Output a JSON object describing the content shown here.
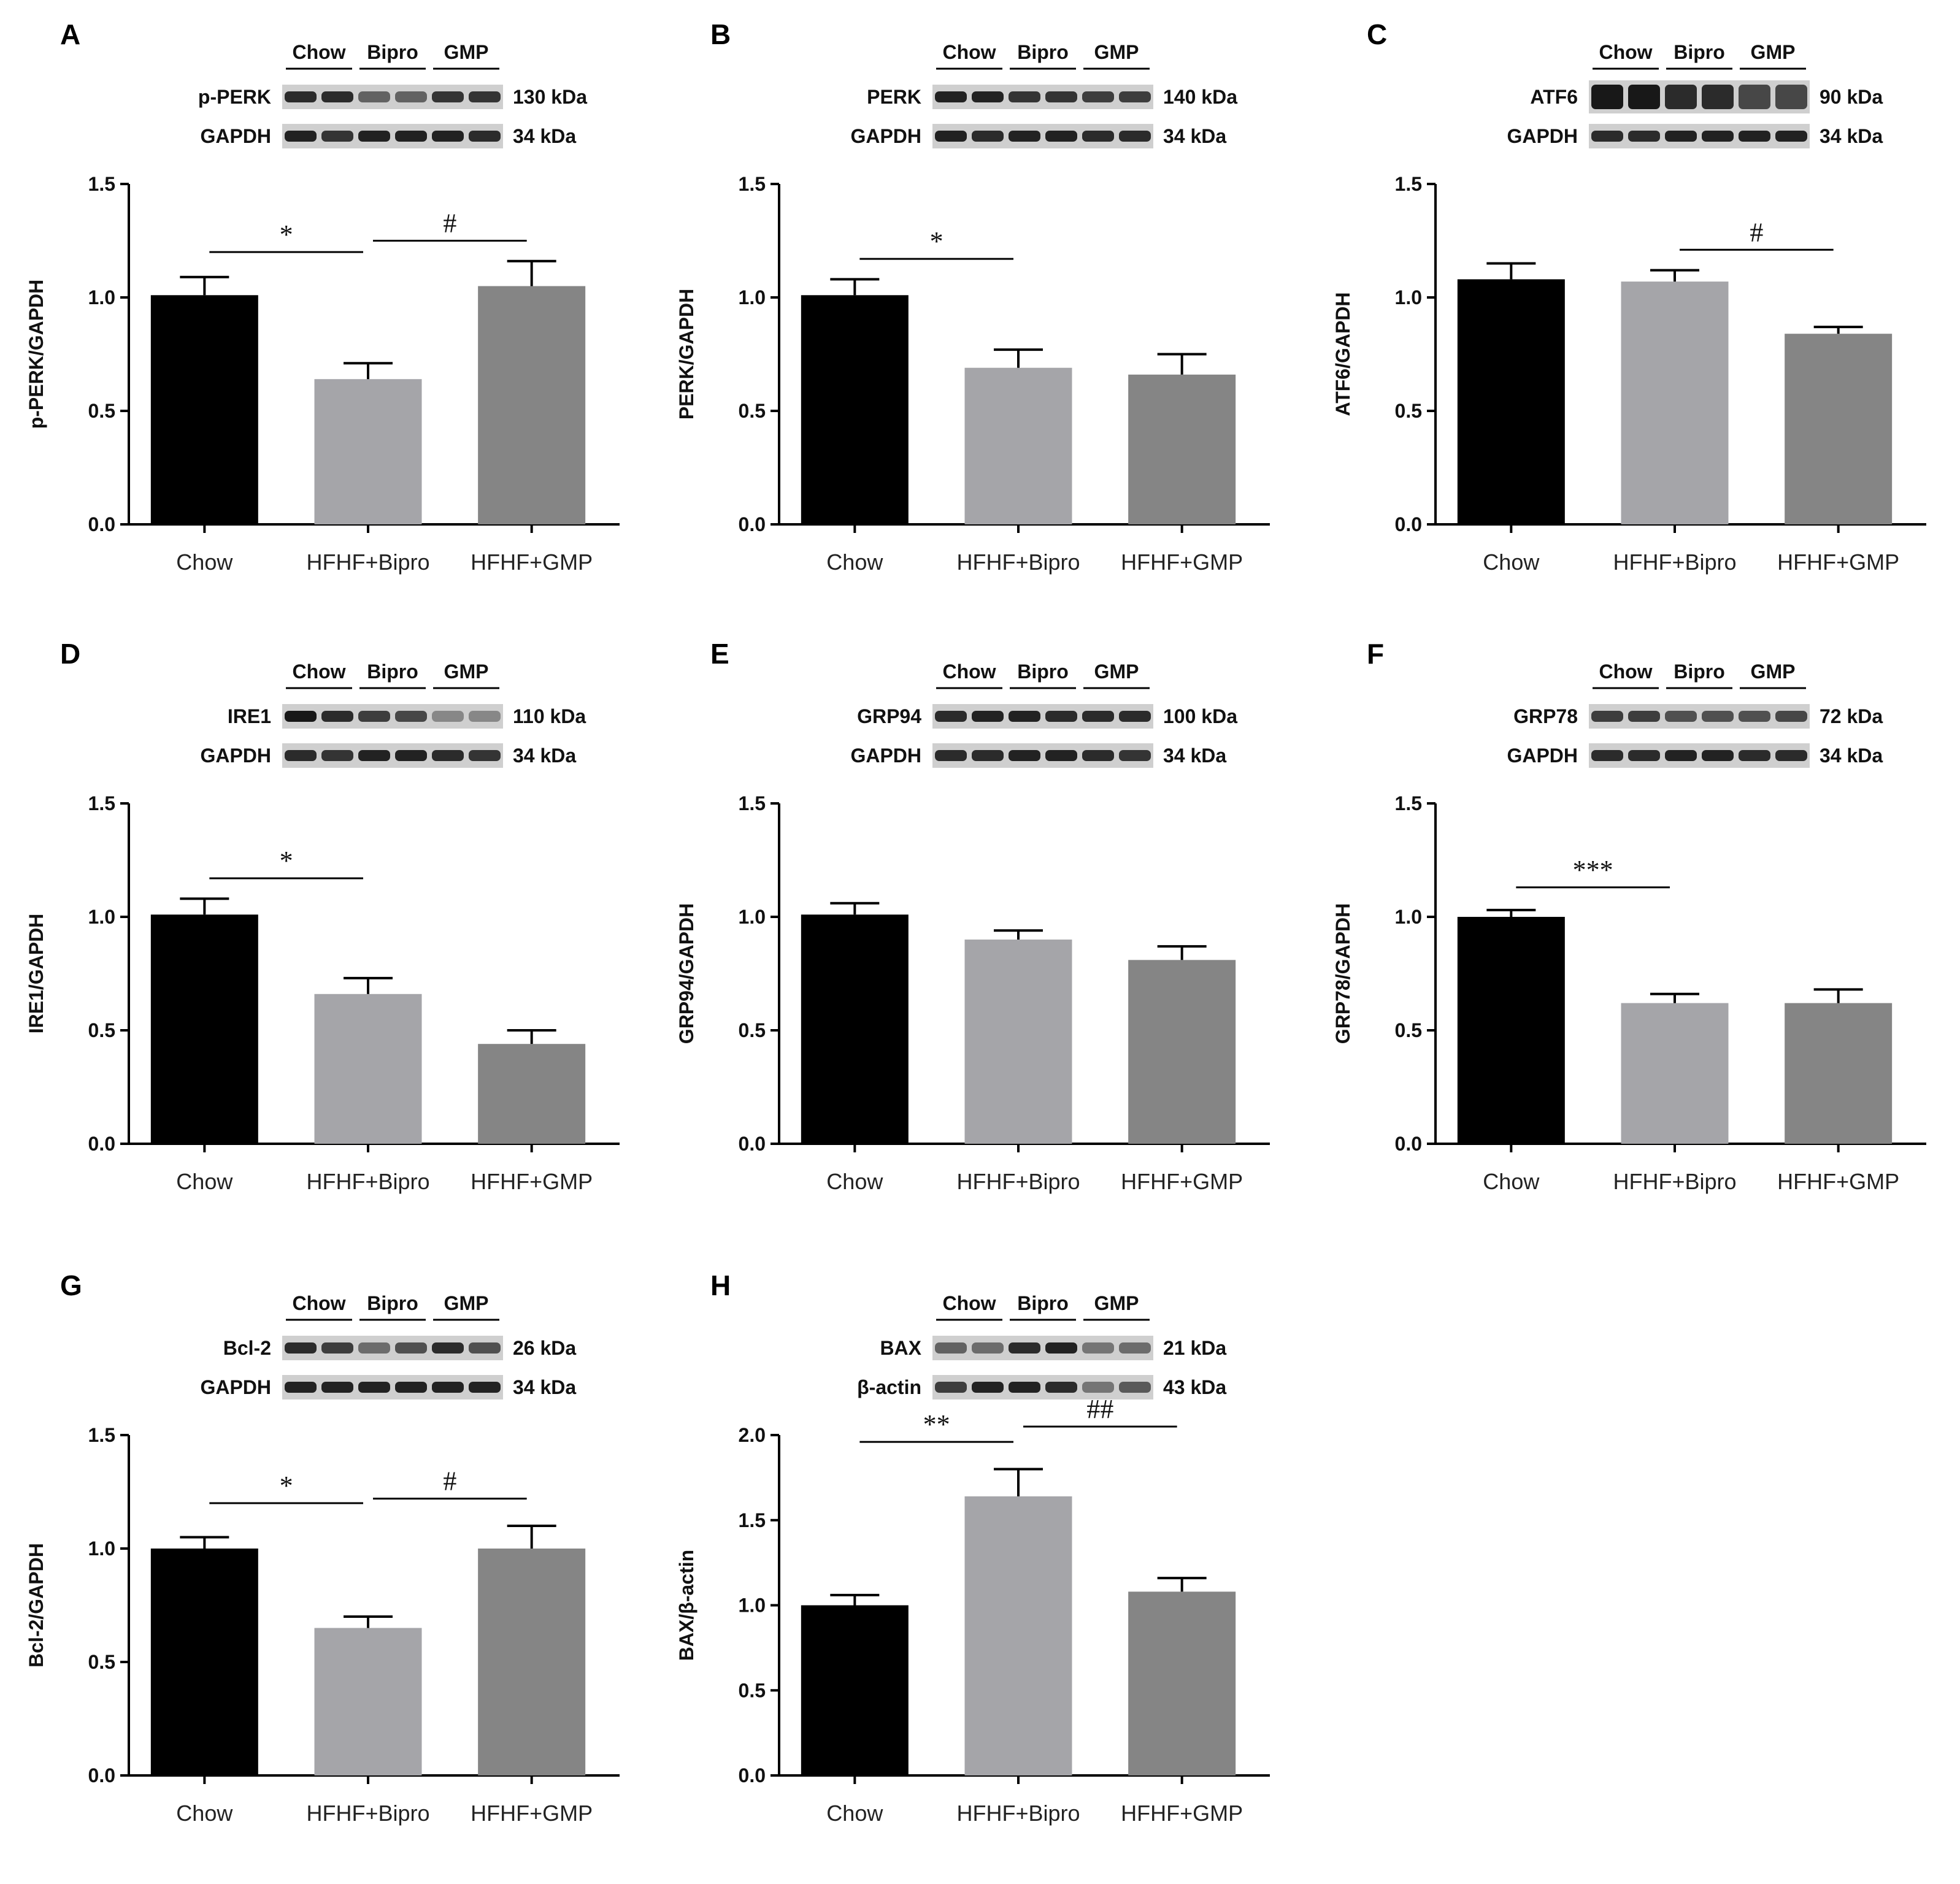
{
  "figure": {
    "bar_colors": [
      "#000000",
      "#a5a5a9",
      "#858585"
    ],
    "band_color": "#1e1e1e",
    "blot_background": "#cfcfcf"
  },
  "chart_data": [
    {
      "panel": "A",
      "type": "bar",
      "blot": {
        "groups": [
          "Chow",
          "Bipro",
          "GMP"
        ],
        "rows": [
          {
            "protein": "p-PERK",
            "size": "130 kDa",
            "intensity": [
              0.85,
              0.85,
              0.55,
              0.55,
              0.8,
              0.8
            ]
          },
          {
            "protein": "GAPDH",
            "size": "34 kDa",
            "intensity": [
              0.9,
              0.8,
              0.9,
              0.9,
              0.9,
              0.85
            ]
          }
        ]
      },
      "categories": [
        "Chow",
        "HFHF+Bipro",
        "HFHF+GMP"
      ],
      "values": [
        1.01,
        0.64,
        1.05
      ],
      "errors": [
        0.08,
        0.07,
        0.11
      ],
      "ylabel": "p-PERK/GAPDH",
      "ylim": [
        0,
        1.5
      ],
      "yticks": [
        "0.0",
        "0.5",
        "1.0",
        "1.5"
      ],
      "significance": [
        {
          "from": 0,
          "to": 1,
          "label": "*",
          "y": 1.2
        },
        {
          "from": 1,
          "to": 2,
          "label": "#",
          "y": 1.25
        }
      ]
    },
    {
      "panel": "B",
      "type": "bar",
      "blot": {
        "groups": [
          "Chow",
          "Bipro",
          "GMP"
        ],
        "rows": [
          {
            "protein": "PERK",
            "size": "140 kDa",
            "intensity": [
              0.9,
              0.9,
              0.8,
              0.8,
              0.75,
              0.75
            ]
          },
          {
            "protein": "GAPDH",
            "size": "34 kDa",
            "intensity": [
              0.9,
              0.85,
              0.9,
              0.9,
              0.85,
              0.85
            ]
          }
        ]
      },
      "categories": [
        "Chow",
        "HFHF+Bipro",
        "HFHF+GMP"
      ],
      "values": [
        1.01,
        0.69,
        0.66
      ],
      "errors": [
        0.07,
        0.08,
        0.09
      ],
      "ylabel": "PERK/GAPDH",
      "ylim": [
        0,
        1.5
      ],
      "yticks": [
        "0.0",
        "0.5",
        "1.0",
        "1.5"
      ],
      "significance": [
        {
          "from": 0,
          "to": 1,
          "label": "*",
          "y": 1.17
        }
      ]
    },
    {
      "panel": "C",
      "type": "bar",
      "blot": {
        "groups": [
          "Chow",
          "Bipro",
          "GMP"
        ],
        "rows": [
          {
            "protein": "ATF6",
            "size": "90 kDa",
            "intensity": [
              0.95,
              0.95,
              0.85,
              0.85,
              0.7,
              0.7
            ],
            "tall": true
          },
          {
            "protein": "GAPDH",
            "size": "34 kDa",
            "intensity": [
              0.85,
              0.85,
              0.9,
              0.9,
              0.9,
              0.9
            ]
          }
        ]
      },
      "categories": [
        "Chow",
        "HFHF+Bipro",
        "HFHF+GMP"
      ],
      "values": [
        1.08,
        1.07,
        0.84
      ],
      "errors": [
        0.07,
        0.05,
        0.03
      ],
      "ylabel": "ATF6/GAPDH",
      "ylim": [
        0,
        1.5
      ],
      "yticks": [
        "0.0",
        "0.5",
        "1.0",
        "1.5"
      ],
      "significance": [
        {
          "from": 1,
          "to": 2,
          "label": "#",
          "y": 1.21
        }
      ]
    },
    {
      "panel": "D",
      "type": "bar",
      "blot": {
        "groups": [
          "Chow",
          "Bipro",
          "GMP"
        ],
        "rows": [
          {
            "protein": "IRE1",
            "size": "110 kDa",
            "intensity": [
              0.95,
              0.85,
              0.75,
              0.7,
              0.35,
              0.35
            ]
          },
          {
            "protein": "GAPDH",
            "size": "34 kDa",
            "intensity": [
              0.85,
              0.8,
              0.9,
              0.9,
              0.85,
              0.8
            ]
          }
        ]
      },
      "categories": [
        "Chow",
        "HFHF+Bipro",
        "HFHF+GMP"
      ],
      "values": [
        1.01,
        0.66,
        0.44
      ],
      "errors": [
        0.07,
        0.07,
        0.06
      ],
      "ylabel": "IRE1/GAPDH",
      "ylim": [
        0,
        1.5
      ],
      "yticks": [
        "0.0",
        "0.5",
        "1.0",
        "1.5"
      ],
      "significance": [
        {
          "from": 0,
          "to": 1,
          "label": "*",
          "y": 1.17
        }
      ]
    },
    {
      "panel": "E",
      "type": "bar",
      "blot": {
        "groups": [
          "Chow",
          "Bipro",
          "GMP"
        ],
        "rows": [
          {
            "protein": "GRP94",
            "size": "100 kDa",
            "intensity": [
              0.85,
              0.9,
              0.9,
              0.85,
              0.85,
              0.85
            ]
          },
          {
            "protein": "GAPDH",
            "size": "34 kDa",
            "intensity": [
              0.85,
              0.85,
              0.9,
              0.9,
              0.85,
              0.8
            ]
          }
        ]
      },
      "categories": [
        "Chow",
        "HFHF+Bipro",
        "HFHF+GMP"
      ],
      "values": [
        1.01,
        0.9,
        0.81
      ],
      "errors": [
        0.05,
        0.04,
        0.06
      ],
      "ylabel": "GRP94/GAPDH",
      "ylim": [
        0,
        1.5
      ],
      "yticks": [
        "0.0",
        "0.5",
        "1.0",
        "1.5"
      ],
      "significance": []
    },
    {
      "panel": "F",
      "type": "bar",
      "blot": {
        "groups": [
          "Chow",
          "Bipro",
          "GMP"
        ],
        "rows": [
          {
            "protein": "GRP78",
            "size": "72 kDa",
            "intensity": [
              0.75,
              0.75,
              0.65,
              0.65,
              0.65,
              0.7
            ]
          },
          {
            "protein": "GAPDH",
            "size": "34 kDa",
            "intensity": [
              0.85,
              0.85,
              0.9,
              0.9,
              0.85,
              0.85
            ]
          }
        ]
      },
      "categories": [
        "Chow",
        "HFHF+Bipro",
        "HFHF+GMP"
      ],
      "values": [
        1.0,
        0.62,
        0.62
      ],
      "errors": [
        0.03,
        0.04,
        0.06
      ],
      "ylabel": "GRP78/GAPDH",
      "ylim": [
        0,
        1.5
      ],
      "yticks": [
        "0.0",
        "0.5",
        "1.0",
        "1.5"
      ],
      "significance": [
        {
          "from": 0,
          "to": 1,
          "label": "***",
          "y": 1.13
        }
      ]
    },
    {
      "panel": "G",
      "type": "bar",
      "blot": {
        "groups": [
          "Chow",
          "Bipro",
          "GMP"
        ],
        "rows": [
          {
            "protein": "Bcl-2",
            "size": "26 kDa",
            "intensity": [
              0.85,
              0.75,
              0.5,
              0.65,
              0.85,
              0.65
            ]
          },
          {
            "protein": "GAPDH",
            "size": "34 kDa",
            "intensity": [
              0.9,
              0.9,
              0.9,
              0.9,
              0.9,
              0.9
            ]
          }
        ]
      },
      "categories": [
        "Chow",
        "HFHF+Bipro",
        "HFHF+GMP"
      ],
      "values": [
        1.0,
        0.65,
        1.0
      ],
      "errors": [
        0.05,
        0.05,
        0.1
      ],
      "ylabel": "Bcl-2/GAPDH",
      "ylim": [
        0,
        1.5
      ],
      "yticks": [
        "0.0",
        "0.5",
        "1.0",
        "1.5"
      ],
      "significance": [
        {
          "from": 0,
          "to": 1,
          "label": "*",
          "y": 1.2
        },
        {
          "from": 1,
          "to": 2,
          "label": "#",
          "y": 1.22
        }
      ]
    },
    {
      "panel": "H",
      "type": "bar",
      "blot": {
        "groups": [
          "Chow",
          "Bipro",
          "GMP"
        ],
        "rows": [
          {
            "protein": "BAX",
            "size": "21 kDa",
            "intensity": [
              0.55,
              0.5,
              0.85,
              0.9,
              0.45,
              0.5
            ]
          },
          {
            "protein": "β-actin",
            "size": "43 kDa",
            "intensity": [
              0.75,
              0.9,
              0.9,
              0.85,
              0.45,
              0.6
            ]
          }
        ]
      },
      "categories": [
        "Chow",
        "HFHF+Bipro",
        "HFHF+GMP"
      ],
      "values": [
        1.0,
        1.64,
        1.08
      ],
      "errors": [
        0.06,
        0.16,
        0.08
      ],
      "ylabel": "BAX/β-actin",
      "ylim": [
        0,
        2.0
      ],
      "yticks": [
        "0.0",
        "0.5",
        "1.0",
        "1.5",
        "2.0"
      ],
      "significance": [
        {
          "from": 0,
          "to": 1,
          "label": "**",
          "y": 1.96
        },
        {
          "from": 1,
          "to": 2,
          "label": "##",
          "y": 2.05
        }
      ]
    }
  ]
}
